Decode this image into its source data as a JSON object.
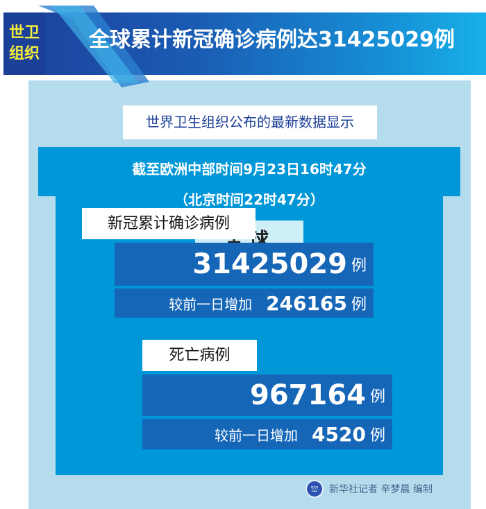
{
  "header": {
    "tag_line1": "世卫",
    "tag_line2": "组织",
    "title": "全球累计新冠确诊病例达31425029例"
  },
  "subtitle": "世界卫生组织公布的最新数据显示",
  "time": {
    "line1": "截至欧洲中部时间9月23日16时47分",
    "line2": "（北京时间22时47分）"
  },
  "scope": "全球",
  "confirmed": {
    "label": "新冠累计确诊病例",
    "total": "31425029",
    "unit": "例",
    "delta_label": "较前一日增加",
    "delta": "246165"
  },
  "deaths": {
    "label": "死亡病例",
    "total": "967164",
    "unit": "例",
    "delta_label": "较前一日增加",
    "delta": "4520"
  },
  "footer": "新华社记者 辛梦晨 编制",
  "colors": {
    "banner": "#1a5cb4",
    "panel": "#b4dced",
    "inner": "#0097d8",
    "box": "#1666b8",
    "tag_text": "#f5ee3a"
  }
}
